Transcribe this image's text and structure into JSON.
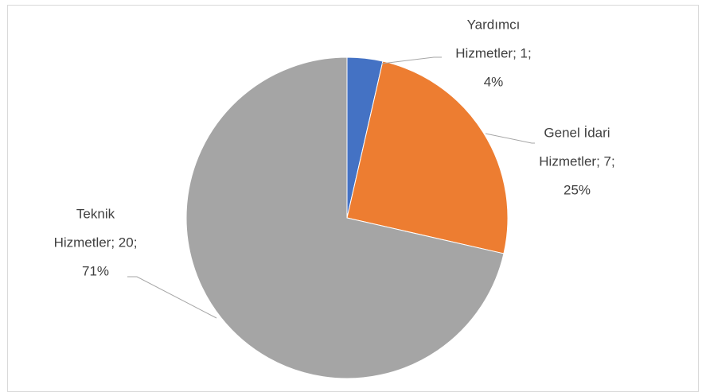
{
  "chart_data": {
    "type": "pie",
    "categories": [
      "Yardımcı Hizmetler",
      "Genel İdari Hizmetler",
      "Teknik Hizmetler"
    ],
    "values": [
      1,
      7,
      20
    ],
    "value_labels": [
      [
        "Yardımcı",
        "Hizmetler; 1;",
        "4%"
      ],
      [
        "Genel İdari",
        "Hizmetler; 7;",
        "25%"
      ],
      [
        "Teknik",
        "Hizmetler; 20;",
        "71%"
      ]
    ],
    "colors": [
      "#4472c4",
      "#ed7d31",
      "#a5a5a5"
    ]
  }
}
